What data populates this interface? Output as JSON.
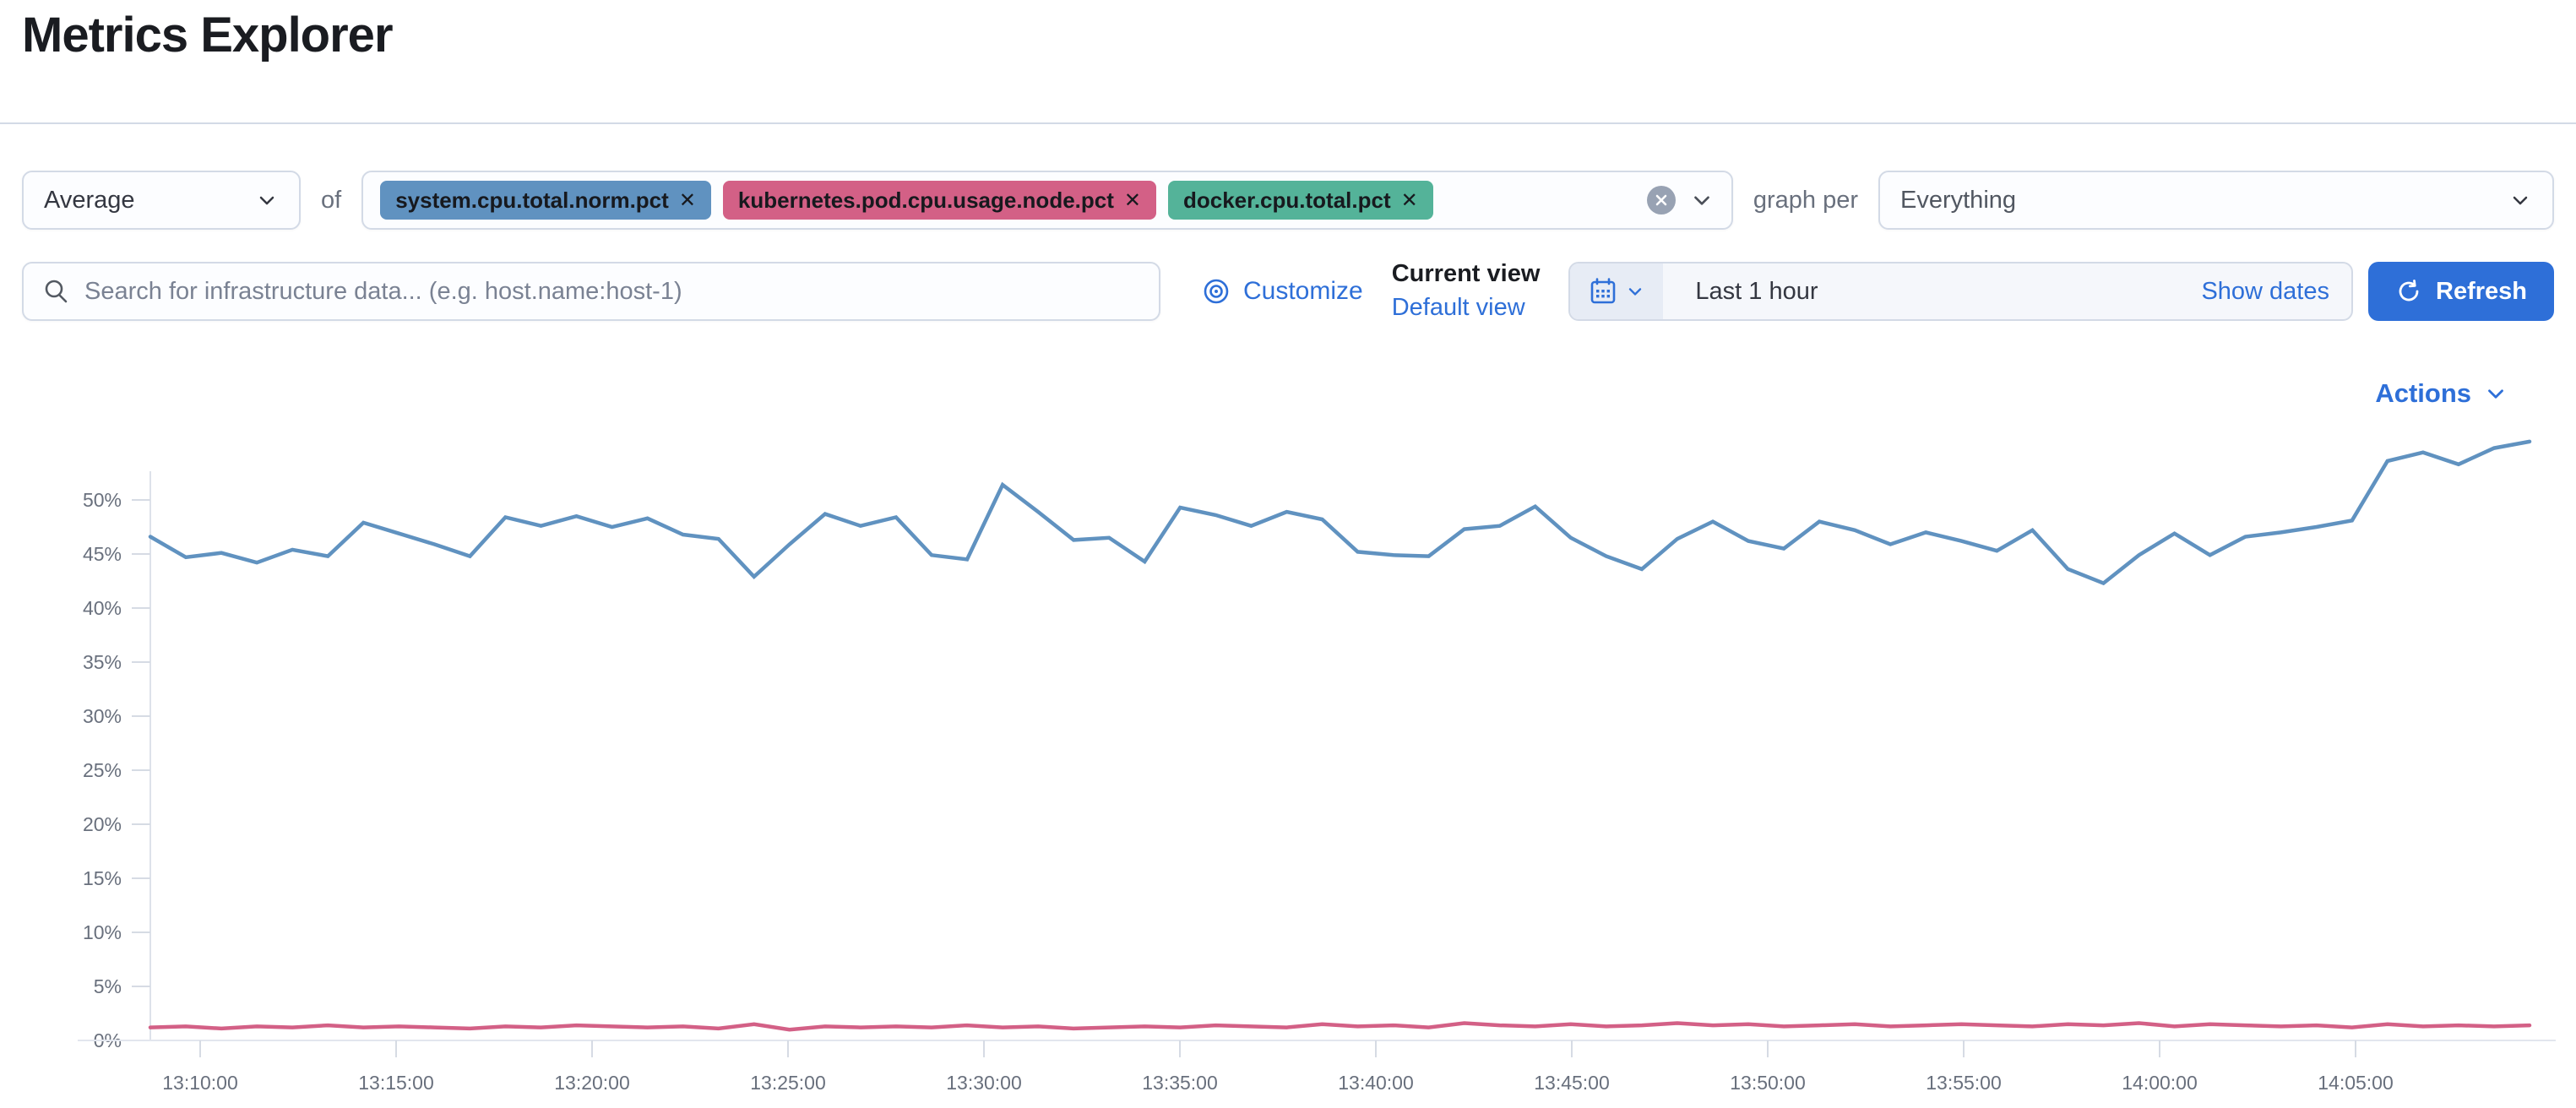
{
  "page": {
    "title": "Metrics Explorer"
  },
  "colors": {
    "accent": "#2e6fd8",
    "border": "#d3dae6",
    "text": "#343741",
    "subdued": "#69707D"
  },
  "toolbar": {
    "aggregation": {
      "value": "Average"
    },
    "of_label": "of",
    "metrics": [
      {
        "label": "system.cpu.total.norm.pct",
        "color": "#6092C0"
      },
      {
        "label": "kubernetes.pod.cpu.usage.node.pct",
        "color": "#D36086"
      },
      {
        "label": "docker.cpu.total.pct",
        "color": "#54B399"
      }
    ],
    "graph_per_label": "graph per",
    "group_by": {
      "value": "Everything"
    }
  },
  "search": {
    "placeholder": "Search for infrastructure data... (e.g. host.name:host-1)"
  },
  "view_controls": {
    "customize_label": "Customize",
    "current_view_label": "Current view",
    "default_view_label": "Default view"
  },
  "datepicker": {
    "value": "Last 1 hour",
    "show_dates_label": "Show dates",
    "refresh_label": "Refresh"
  },
  "actions": {
    "label": "Actions"
  },
  "chart_data": {
    "type": "line",
    "title": "",
    "xlabel": "",
    "ylabel": "",
    "grid": "off",
    "legend": "off",
    "ylim": [
      0,
      55
    ],
    "y_ticks": [
      "0%",
      "5%",
      "10%",
      "15%",
      "20%",
      "25%",
      "30%",
      "35%",
      "40%",
      "45%",
      "50%"
    ],
    "x_ticks": [
      "13:10:00",
      "13:15:00",
      "13:20:00",
      "13:25:00",
      "13:30:00",
      "13:35:00",
      "13:40:00",
      "13:45:00",
      "13:50:00",
      "13:55:00",
      "14:00:00",
      "14:05:00"
    ],
    "x_range": [
      "13:08:45",
      "14:09:30"
    ],
    "series": [
      {
        "name": "system.cpu.total.norm.pct",
        "color": "#6092C0",
        "unit": "%",
        "values": [
          46.6,
          44.7,
          45.1,
          44.2,
          45.4,
          44.8,
          47.9,
          46.9,
          45.9,
          44.8,
          48.4,
          47.6,
          48.5,
          47.5,
          48.3,
          46.8,
          46.4,
          42.9,
          45.9,
          48.7,
          47.6,
          48.4,
          44.9,
          44.5,
          51.4,
          48.9,
          46.3,
          46.5,
          44.3,
          49.3,
          48.6,
          47.6,
          48.9,
          48.2,
          45.2,
          44.9,
          44.8,
          47.3,
          47.6,
          49.4,
          46.5,
          44.8,
          43.6,
          46.4,
          48.0,
          46.2,
          45.5,
          48.0,
          47.2,
          45.9,
          47.0,
          46.2,
          45.3,
          47.2,
          43.6,
          42.3,
          44.9,
          46.9,
          44.9,
          46.6,
          47.0,
          47.5,
          48.1,
          53.6,
          54.4,
          53.3,
          54.8,
          55.4
        ]
      },
      {
        "name": "kubernetes.pod.cpu.usage.node.pct",
        "color": "#D36086",
        "unit": "%",
        "values": [
          1.2,
          1.3,
          1.1,
          1.3,
          1.2,
          1.4,
          1.2,
          1.3,
          1.2,
          1.1,
          1.3,
          1.2,
          1.4,
          1.3,
          1.2,
          1.3,
          1.1,
          1.5,
          1.0,
          1.3,
          1.2,
          1.3,
          1.2,
          1.4,
          1.2,
          1.3,
          1.1,
          1.2,
          1.3,
          1.2,
          1.4,
          1.3,
          1.2,
          1.5,
          1.3,
          1.4,
          1.2,
          1.6,
          1.4,
          1.3,
          1.5,
          1.3,
          1.4,
          1.6,
          1.4,
          1.5,
          1.3,
          1.4,
          1.5,
          1.3,
          1.4,
          1.5,
          1.4,
          1.3,
          1.5,
          1.4,
          1.6,
          1.3,
          1.5,
          1.4,
          1.3,
          1.4,
          1.2,
          1.5,
          1.3,
          1.4,
          1.3,
          1.4
        ]
      }
    ]
  }
}
